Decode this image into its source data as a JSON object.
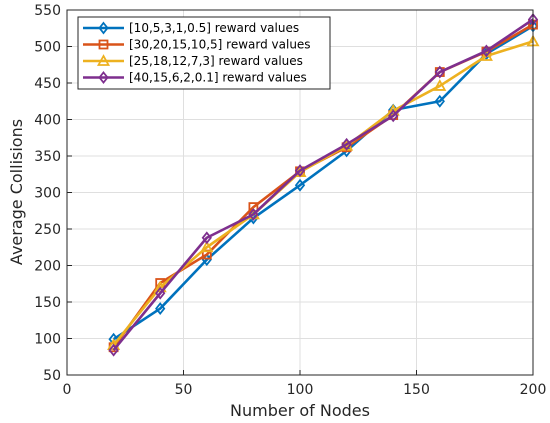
{
  "chart_data": {
    "type": "line",
    "title": "",
    "xlabel": "Number of Nodes",
    "ylabel": "Average Collisions",
    "xlim": [
      0,
      200
    ],
    "ylim": [
      50,
      550
    ],
    "xticks": [
      0,
      50,
      100,
      150,
      200
    ],
    "yticks": [
      50,
      100,
      150,
      200,
      250,
      300,
      350,
      400,
      450,
      500,
      550
    ],
    "grid": true,
    "legend_position": "top-left",
    "x": [
      20,
      40,
      60,
      80,
      100,
      120,
      140,
      160,
      180,
      200
    ],
    "series": [
      {
        "name": "[10,5,3,1,0.5] reward values",
        "color": "#0072BD",
        "marker": "diamond",
        "values": [
          99,
          141,
          208,
          265,
          310,
          357,
          413,
          425,
          490,
          528
        ]
      },
      {
        "name": "[30,20,15,10,5] reward values",
        "color": "#D95319",
        "marker": "square",
        "values": [
          88,
          176,
          215,
          280,
          329,
          362,
          406,
          465,
          493,
          530
        ]
      },
      {
        "name": "[25,18,12,7,3] reward values",
        "color": "#EDB120",
        "marker": "triangle",
        "values": [
          91,
          170,
          225,
          270,
          328,
          364,
          412,
          446,
          487,
          507
        ]
      },
      {
        "name": "[40,15,6,2,0.1] reward values",
        "color": "#7E2F8E",
        "marker": "diamond",
        "values": [
          84,
          162,
          238,
          270,
          330,
          366,
          405,
          465,
          494,
          537
        ]
      }
    ]
  }
}
